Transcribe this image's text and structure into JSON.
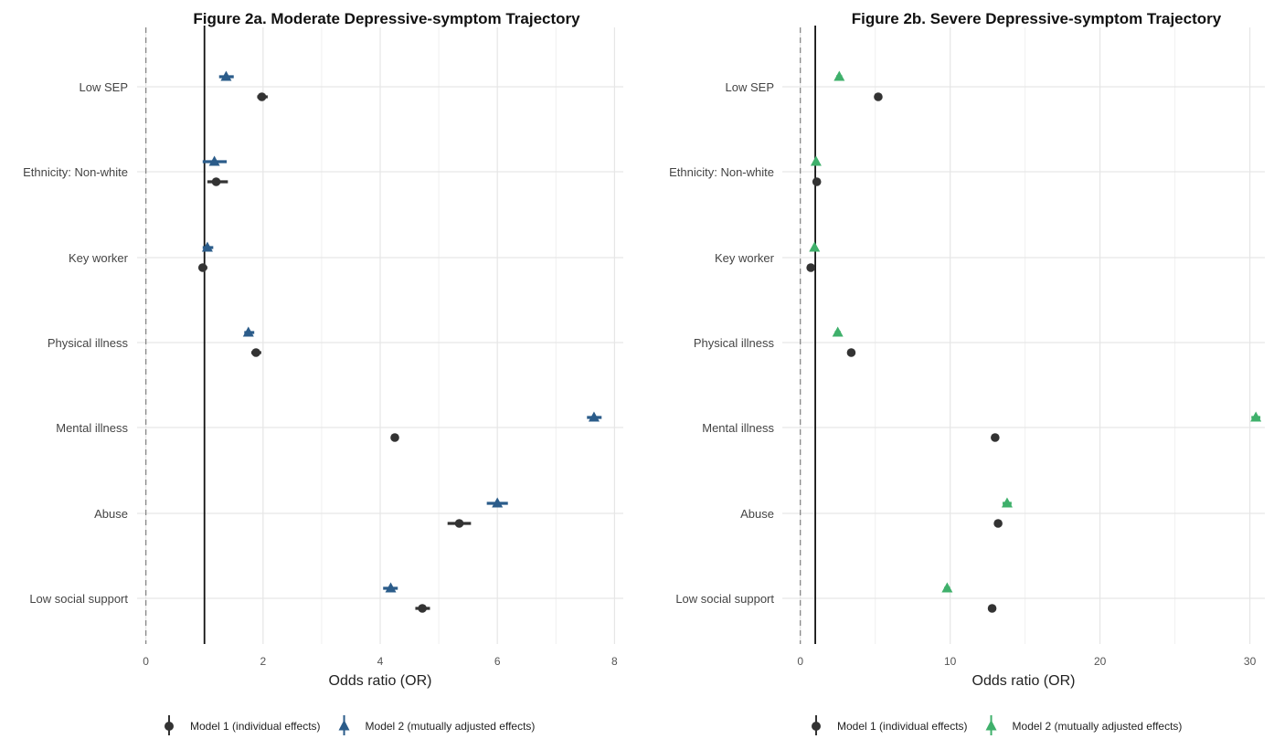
{
  "chart_data": [
    {
      "type": "scatter",
      "title": "Figure 2a. Moderate Depressive-symptom Trajectory",
      "xlabel": "Odds ratio (OR)",
      "ylabel": "",
      "xlim": [
        -0.15,
        8.15
      ],
      "xticks": [
        0,
        2,
        4,
        6,
        8
      ],
      "reference_lines": {
        "dashed": 0,
        "solid": 1
      },
      "categories": [
        "Low SEP",
        "Ethnicity: Non-white",
        "Key worker",
        "Physical illness",
        "Mental illness",
        "Abuse",
        "Low social support"
      ],
      "series": [
        {
          "name": "Model 1 (individual effects)",
          "color": "#333333",
          "marker": "circle",
          "values": [
            1.98,
            1.2,
            0.97,
            1.88,
            4.25,
            5.35,
            4.72
          ],
          "ci_lower": [
            1.9,
            1.05,
            0.9,
            1.8,
            4.2,
            5.15,
            4.6
          ],
          "ci_upper": [
            2.08,
            1.4,
            1.05,
            1.97,
            4.3,
            5.55,
            4.85
          ]
        },
        {
          "name": "Model 2 (mutually adjusted effects)",
          "color": "#2b5c8a",
          "marker": "triangle",
          "values": [
            1.37,
            1.17,
            1.05,
            1.75,
            7.65,
            6.0,
            4.18
          ],
          "ci_lower": [
            1.25,
            0.97,
            0.97,
            1.68,
            7.53,
            5.82,
            4.05
          ],
          "ci_upper": [
            1.5,
            1.38,
            1.15,
            1.85,
            7.78,
            6.18,
            4.3
          ]
        }
      ],
      "grid": true,
      "legend_position": "bottom"
    },
    {
      "type": "scatter",
      "title": "Figure 2b. Severe Depressive-symptom Trajectory",
      "xlabel": "Odds ratio (OR)",
      "ylabel": "",
      "xlim": [
        -1.2,
        31.0
      ],
      "xticks": [
        0,
        10,
        20,
        30
      ],
      "reference_lines": {
        "dashed": 0,
        "solid": 1
      },
      "categories": [
        "Low SEP",
        "Ethnicity: Non-white",
        "Key worker",
        "Physical illness",
        "Mental illness",
        "Abuse",
        "Low social support"
      ],
      "series": [
        {
          "name": "Model 1 (individual effects)",
          "color": "#333333",
          "marker": "circle",
          "values": [
            5.2,
            1.1,
            0.7,
            3.4,
            13.0,
            13.2,
            12.8
          ],
          "ci_lower": [
            5.0,
            0.95,
            0.6,
            3.2,
            12.8,
            13.0,
            12.6
          ],
          "ci_upper": [
            5.4,
            1.25,
            0.8,
            3.6,
            13.2,
            13.4,
            13.0
          ]
        },
        {
          "name": "Model 2 (mutually adjusted effects)",
          "color": "#3fb06b",
          "marker": "triangle",
          "values": [
            2.6,
            1.05,
            0.95,
            2.5,
            30.4,
            13.8,
            9.8
          ],
          "ci_lower": [
            2.4,
            0.9,
            0.85,
            2.3,
            30.1,
            13.5,
            9.6
          ],
          "ci_upper": [
            2.8,
            1.2,
            1.05,
            2.7,
            30.7,
            14.1,
            10.0
          ]
        }
      ],
      "grid": true,
      "legend_position": "bottom"
    }
  ]
}
